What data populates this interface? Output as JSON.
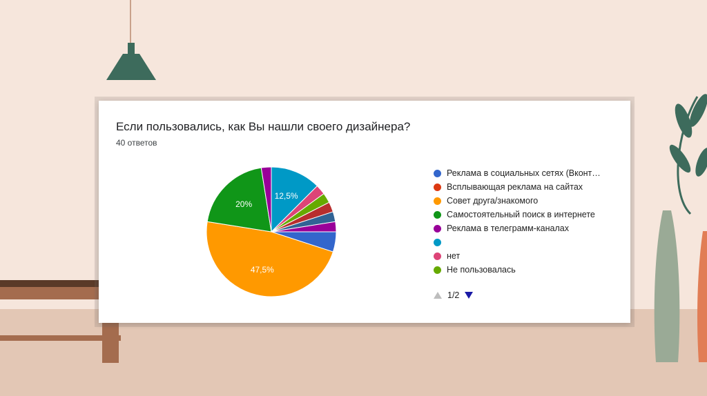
{
  "chart_data": {
    "type": "pie",
    "title": "Если пользовались, как Вы нашли своего дизайнера?",
    "subtitle": "40 ответов",
    "slices": [
      {
        "label": "Реклама в социальных сетях (Вконт…",
        "value": 5,
        "color": "#3366cc"
      },
      {
        "label": "Всплывающая реклама на сайтах",
        "value": 2.5,
        "color": "#dc3912"
      },
      {
        "label": "Совет друга/знакомого",
        "value": 47.5,
        "color": "#ff9900",
        "data_label": "47,5%"
      },
      {
        "label": "Самостоятельный поиск в интернете",
        "value": 20,
        "color": "#109618",
        "data_label": "20%"
      },
      {
        "label": "Реклама в телеграмм-каналах",
        "value": 2.5,
        "color": "#990099"
      },
      {
        "label": "",
        "value": 12.5,
        "color": "#0099c6",
        "data_label": "12,5%"
      },
      {
        "label": "нет",
        "value": 2.5,
        "color": "#dd4477"
      },
      {
        "label": "Не пользовалась",
        "value": 2.5,
        "color": "#66aa00"
      }
    ],
    "extra_slices": [
      {
        "value": 2.5,
        "color": "#b82e2e"
      },
      {
        "value": 2.5,
        "color": "#316395"
      }
    ],
    "legend_position": "right"
  },
  "legend_pager": {
    "page": "1/2"
  }
}
